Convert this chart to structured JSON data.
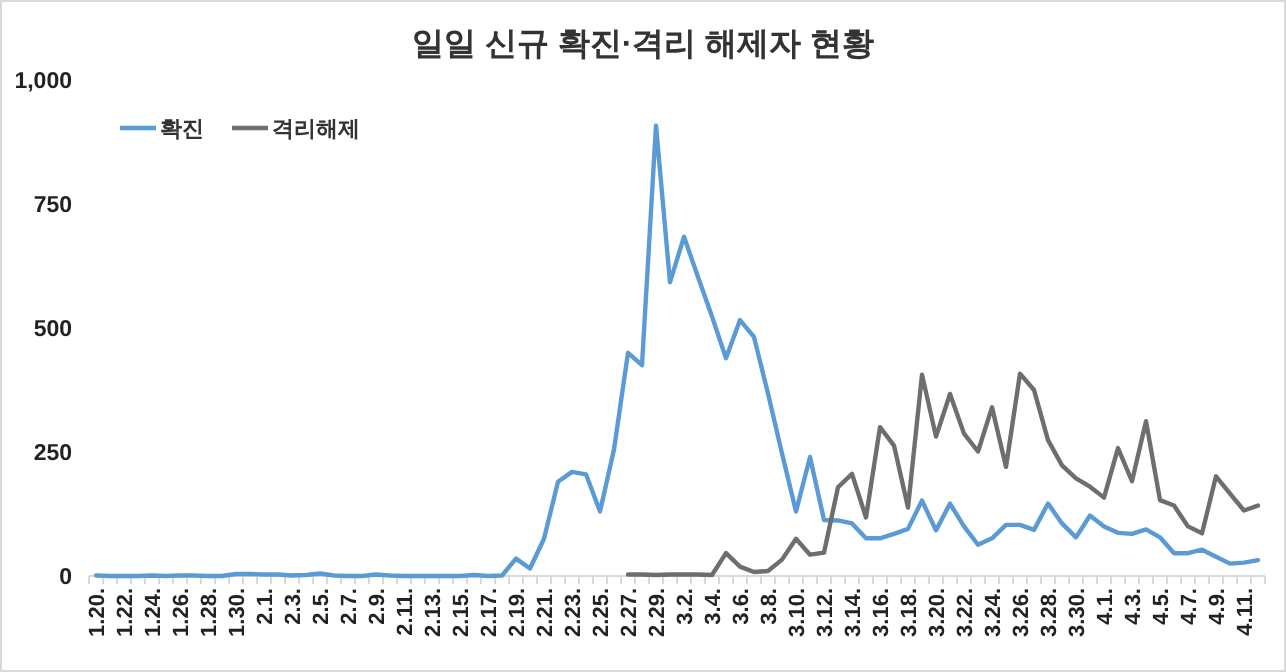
{
  "chart_data": {
    "type": "line",
    "title": "일일 신규 확진·격리 해제자 현황",
    "categories": [
      "1.20.",
      null,
      "1.22.",
      null,
      "1.24.",
      null,
      "1.26.",
      null,
      "1.28.",
      null,
      "1.30.",
      null,
      "2.1.",
      null,
      "2.3.",
      null,
      "2.5.",
      null,
      "2.7.",
      null,
      "2.9.",
      null,
      "2.11.",
      null,
      "2.13.",
      null,
      "2.15.",
      null,
      "2.17.",
      null,
      "2.19.",
      null,
      "2.21.",
      null,
      "2.23.",
      null,
      "2.25.",
      null,
      "2.27.",
      null,
      "2.29.",
      null,
      "3.2.",
      null,
      "3.4.",
      null,
      "3.6.",
      null,
      "3.8.",
      null,
      "3.10.",
      null,
      "3.12.",
      null,
      "3.14.",
      null,
      "3.16.",
      null,
      "3.18.",
      null,
      "3.20.",
      null,
      "3.22.",
      null,
      "3.24.",
      null,
      "3.26.",
      null,
      "3.28.",
      null,
      "3.30.",
      null,
      "4.1.",
      null,
      "4.3.",
      null,
      "4.5.",
      null,
      "4.7.",
      null,
      "4.9.",
      null,
      "4.11.",
      null
    ],
    "series": [
      {
        "name": "확진",
        "color": "#5b9bd5",
        "values": [
          1,
          0,
          0,
          0,
          1,
          0,
          1,
          1,
          0,
          0,
          4,
          4,
          3,
          3,
          1,
          2,
          5,
          1,
          0,
          0,
          3,
          1,
          0,
          0,
          0,
          0,
          0,
          2,
          0,
          1,
          35,
          15,
          75,
          190,
          210,
          205,
          130,
          255,
          450,
          425,
          908,
          592,
          684,
          603,
          523,
          439,
          516,
          482,
          368,
          247,
          130,
          240,
          113,
          112,
          106,
          76,
          76,
          85,
          95,
          152,
          92,
          146,
          100,
          63,
          76,
          103,
          103,
          93,
          146,
          106,
          78,
          122,
          100,
          87,
          85,
          94,
          78,
          46,
          46,
          53,
          39,
          25,
          27,
          32
        ]
      },
      {
        "name": "격리해제",
        "color": "#6e6e6e",
        "values": [
          null,
          null,
          null,
          null,
          null,
          null,
          null,
          null,
          null,
          null,
          null,
          null,
          null,
          null,
          null,
          null,
          null,
          null,
          null,
          null,
          null,
          null,
          null,
          null,
          null,
          null,
          null,
          null,
          null,
          null,
          null,
          null,
          null,
          null,
          null,
          null,
          null,
          null,
          3,
          3,
          2,
          3,
          3,
          3,
          2,
          46,
          19,
          8,
          10,
          33,
          75,
          43,
          47,
          179,
          206,
          118,
          300,
          263,
          138,
          406,
          281,
          367,
          287,
          251,
          340,
          220,
          408,
          375,
          274,
          223,
          197,
          180,
          158,
          258,
          191,
          312,
          153,
          142,
          100,
          86,
          201,
          166,
          132,
          142
        ]
      }
    ],
    "ylim": [
      0,
      1000
    ],
    "yticks": [
      0,
      250,
      500,
      750,
      {
        "value": 1000,
        "label": "1,000"
      }
    ],
    "legend": "top left"
  }
}
